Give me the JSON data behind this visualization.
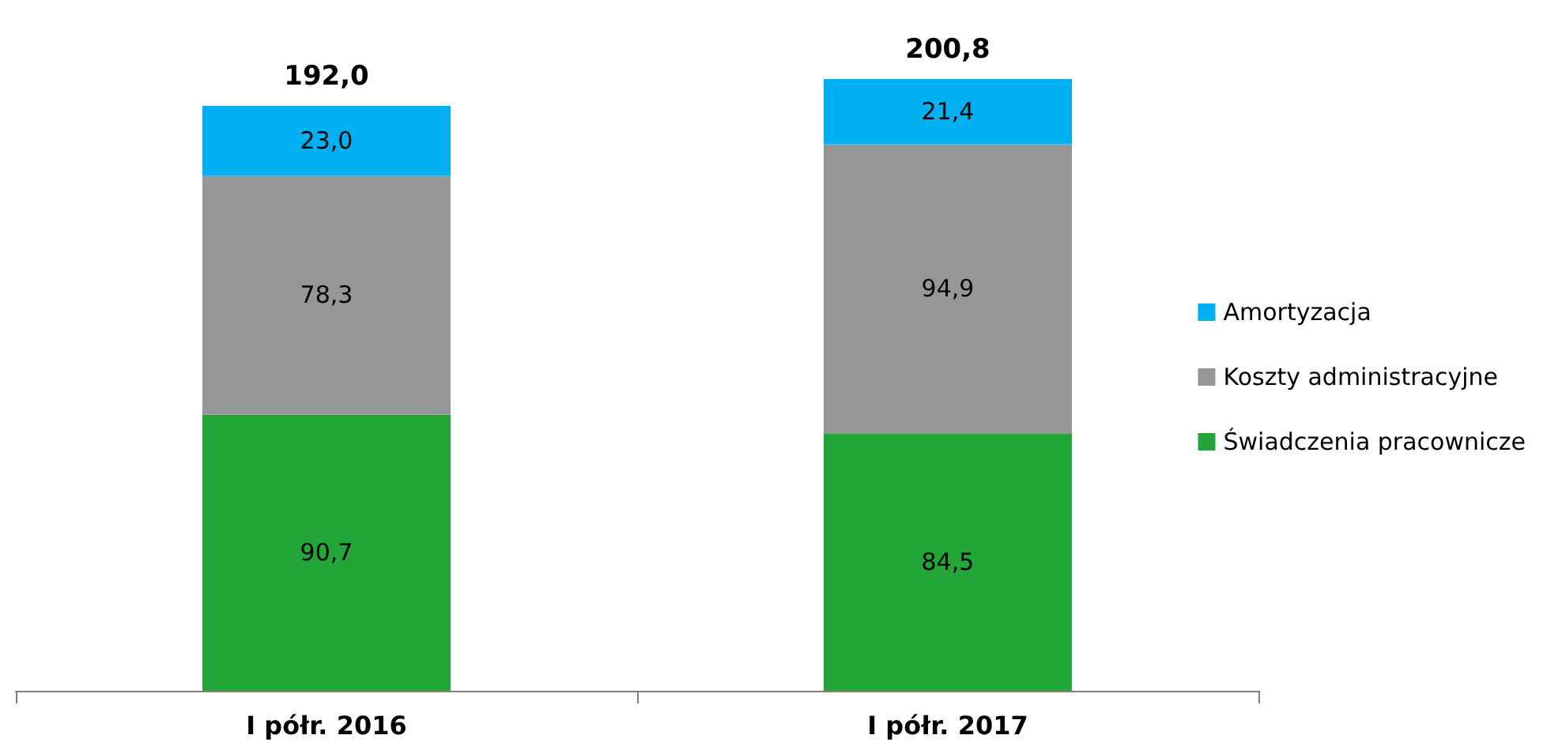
{
  "chart_data": {
    "type": "bar",
    "stacked": true,
    "categories": [
      "I półr. 2016",
      "I półr. 2017"
    ],
    "series": [
      {
        "name": "Świadczenia pracownicze",
        "color": "#22a637",
        "values": [
          90.7,
          84.5
        ],
        "value_labels": [
          "90,7",
          "84,5"
        ]
      },
      {
        "name": "Koszty administracyjne",
        "color": "#969696",
        "values": [
          78.3,
          94.9
        ],
        "value_labels": [
          "78,3",
          "94,9"
        ]
      },
      {
        "name": "Amortyzacja",
        "color": "#00b0f0",
        "values": [
          23.0,
          21.4
        ],
        "value_labels": [
          "23,0",
          "21,4"
        ]
      }
    ],
    "totals": [
      "192,0",
      "200,8"
    ],
    "legend": "right"
  }
}
